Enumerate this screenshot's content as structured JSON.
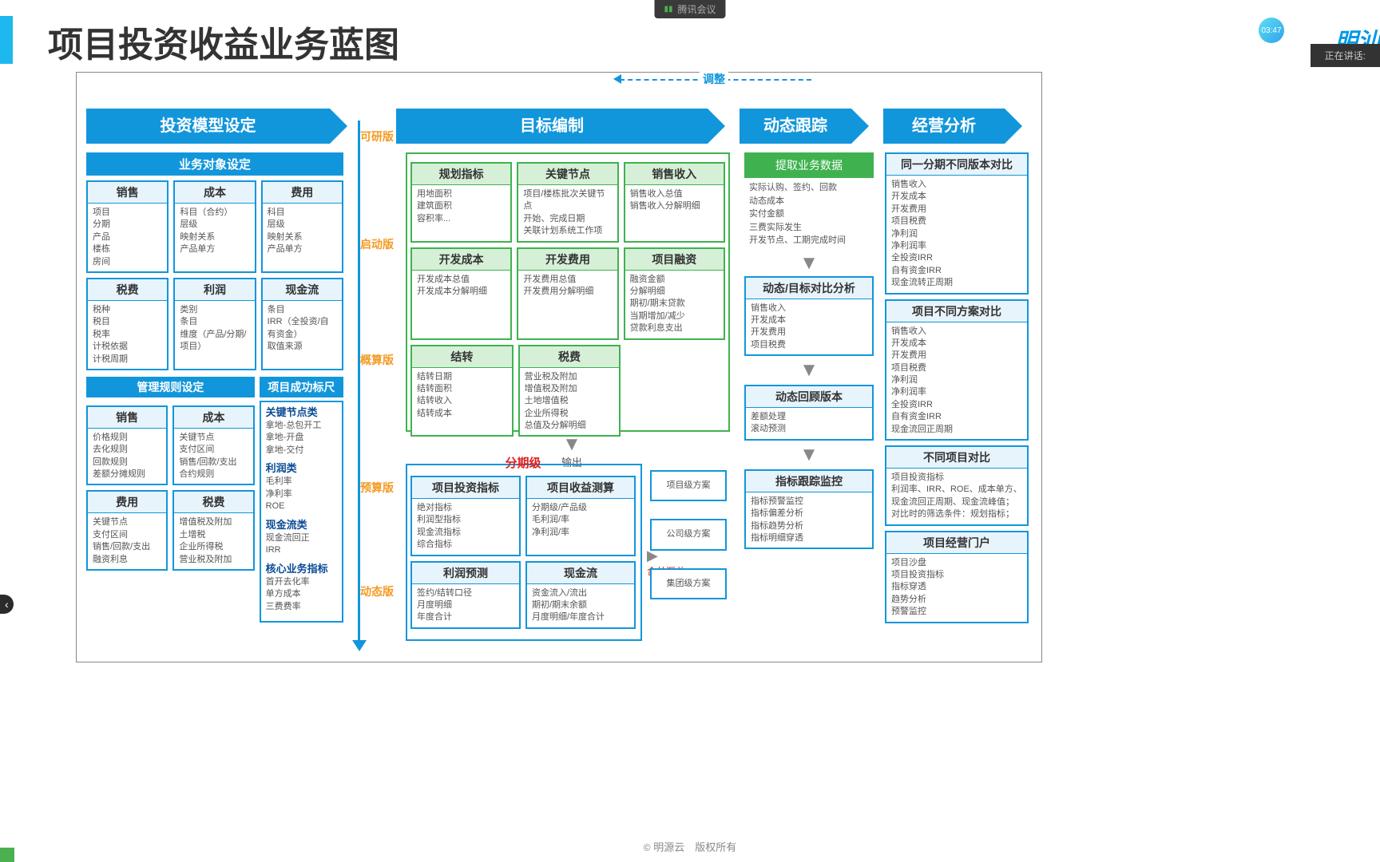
{
  "meta": {
    "app": "腾讯会议",
    "timer": "03:47",
    "speaking": "正在讲话:",
    "logo": "明汕"
  },
  "title": "项目投资收益业务蓝图",
  "adjust": "调整",
  "versions": [
    "可研版",
    "启动版",
    "概算版",
    "预算版",
    "动态版"
  ],
  "headers": {
    "col1": "投资模型设定",
    "col3": "目标编制",
    "col4": "动态跟踪",
    "col5": "经营分析"
  },
  "col1": {
    "sect1": "业务对象设定",
    "row1": [
      {
        "t": "销售",
        "b": "项目\n分期\n产品\n楼栋\n房间"
      },
      {
        "t": "成本",
        "b": "科目（合约）\n层级\n映射关系\n产品单方"
      },
      {
        "t": "费用",
        "b": "科目\n层级\n映射关系\n产品单方"
      }
    ],
    "row2": [
      {
        "t": "税费",
        "b": "税种\n税目\n税率\n计税依据\n计税周期"
      },
      {
        "t": "利润",
        "b": "类别\n条目\n维度（产品/分期/项目）"
      },
      {
        "t": "现金流",
        "b": "条目\nIRR（全投资/自有资金）\n取值来源"
      }
    ],
    "sect2": "管理规则设定",
    "sect2b": "项目成功标尺",
    "row3": [
      {
        "t": "销售",
        "b": "价格规则\n去化规则\n回款规则\n差额分摊规则"
      },
      {
        "t": "成本",
        "b": "关键节点\n支付区间\n销售/回款/支出\n合约规则"
      }
    ],
    "row4": [
      {
        "t": "费用",
        "b": "关键节点\n支付区间\n销售/回款/支出\n融资利息"
      },
      {
        "t": "税费",
        "b": "增值税及附加\n土增税\n企业所得税\n营业税及附加"
      }
    ],
    "ruler": [
      {
        "h": "关键节点类",
        "b": "拿地-总包开工\n拿地-开盘\n拿地-交付"
      },
      {
        "h": "利润类",
        "b": "毛利率\n净利率\nROE"
      },
      {
        "h": "现金流类",
        "b": "现金流回正\nIRR"
      },
      {
        "h": "核心业务指标",
        "b": "首开去化率\n单方成本\n三费费率"
      }
    ]
  },
  "col3": {
    "g1": [
      {
        "t": "规划指标",
        "b": "用地面积\n建筑面积\n容积率..."
      },
      {
        "t": "关键节点",
        "b": "项目/楼栋批次关键节点\n开始、完成日期\n关联计划系统工作项"
      },
      {
        "t": "销售收入",
        "b": "销售收入总值\n销售收入分解明细"
      }
    ],
    "g2": [
      {
        "t": "开发成本",
        "b": "开发成本总值\n开发成本分解明细"
      },
      {
        "t": "开发费用",
        "b": "开发费用总值\n开发费用分解明细"
      },
      {
        "t": "项目融资",
        "b": "融资金额\n分解明细\n期初/期末贷款\n当期增加/减少\n贷款利息支出"
      }
    ],
    "g3": [
      {
        "t": "结转",
        "b": "结转日期\n结转面积\n结转收入\n结转成本"
      },
      {
        "t": "税费",
        "b": "营业税及附加\n增值税及附加\n土地增值税\n企业所得税\n总值及分解明细"
      }
    ],
    "output": "输出",
    "stage": "分期级",
    "b1": [
      {
        "t": "项目投资指标",
        "b": "绝对指标\n利润型指标\n现金流指标\n综合指标"
      },
      {
        "t": "项目收益测算",
        "b": "分期级/产品级\n毛利润/率\n净利润/率"
      }
    ],
    "b2": [
      {
        "t": "利润预测",
        "b": "签约/结转口径\n月度明细\n年度合计"
      },
      {
        "t": "现金流",
        "b": "资金流入/流出\n期初/期末余额\n月度明细/年度合计"
      }
    ],
    "merge": "合并汇总",
    "plans": [
      "项目级方案",
      "公司级方案",
      "集团级方案"
    ]
  },
  "col4": {
    "extract": "提取业务数据",
    "extract_b": "实际认购、签约、回款\n动态成本\n实付金额\n三费实际发生\n开发节点、工期完成时间",
    "c1": {
      "t": "动态/目标对比分析",
      "b": "销售收入\n开发成本\n开发费用\n项目税费"
    },
    "c2": {
      "t": "动态回顾版本",
      "b": "差额处理\n滚动预测"
    },
    "c3": {
      "t": "指标跟踪监控",
      "b": "指标预警监控\n指标偏差分析\n指标趋势分析\n指标明细穿透"
    }
  },
  "col5": {
    "b1": {
      "t": "同一分期不同版本对比",
      "b": "销售收入\n开发成本\n开发费用\n项目税费\n净利润\n净利润率\n全投资IRR\n自有资金IRR\n现金流转正周期"
    },
    "b2": {
      "t": "项目不同方案对比",
      "b": "销售收入\n开发成本\n开发费用\n项目税费\n净利润\n净利润率\n全投资IRR\n自有资金IRR\n现金流回正周期"
    },
    "b3": {
      "t": "不同项目对比",
      "b": "项目投资指标\n利润率、IRR、ROE、成本单方、现金流回正周期、现金流峰值；\n对比时的筛选条件：规划指标；"
    },
    "b4": {
      "t": "项目经营门户",
      "b": "项目沙盘\n项目投资指标\n指标穿透\n趋势分析\n预警监控"
    }
  },
  "footer": "明源云　版权所有"
}
